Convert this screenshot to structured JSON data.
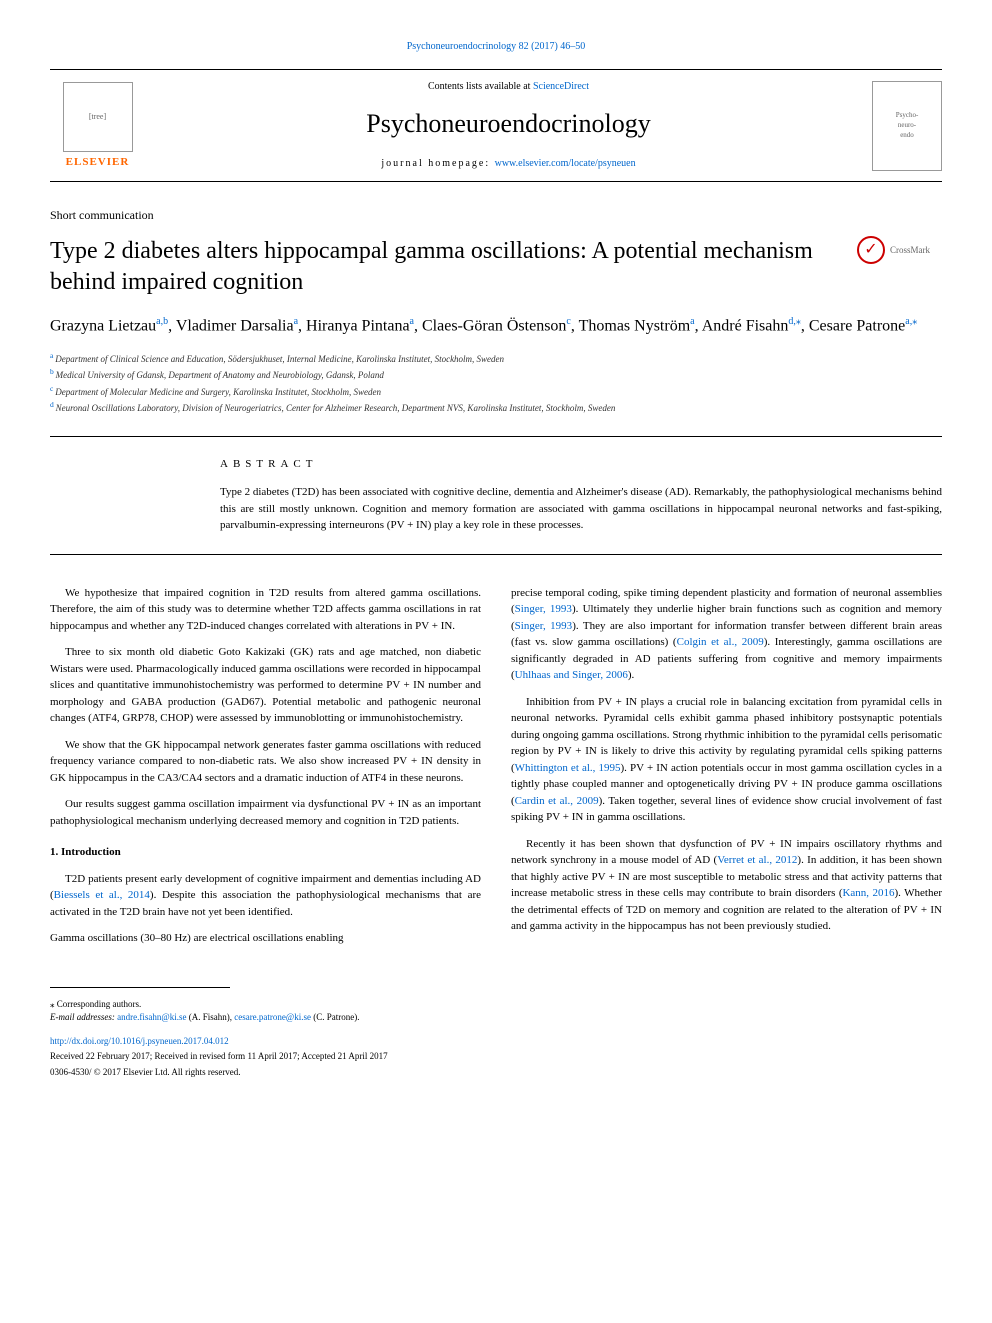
{
  "journal_ref": "Psychoneuroendocrinology 82 (2017) 46–50",
  "header": {
    "contents_prefix": "Contents lists available at ",
    "contents_link": "ScienceDirect",
    "journal_name": "Psychoneuroendocrinology",
    "homepage_prefix": "journal homepage: ",
    "homepage_link": "www.elsevier.com/locate/psyneuen",
    "elsevier": "ELSEVIER"
  },
  "article_type": "Short communication",
  "title": "Type 2 diabetes alters hippocampal gamma oscillations: A potential mechanism behind impaired cognition",
  "crossmark": "CrossMark",
  "authors": [
    {
      "name": "Grazyna Lietzau",
      "aff": "a,b"
    },
    {
      "name": "Vladimer Darsalia",
      "aff": "a"
    },
    {
      "name": "Hiranya Pintana",
      "aff": "a"
    },
    {
      "name": "Claes-Göran Östenson",
      "aff": "c"
    },
    {
      "name": "Thomas Nyström",
      "aff": "a"
    },
    {
      "name": "André Fisahn",
      "aff": "d,",
      "corr": true
    },
    {
      "name": "Cesare Patrone",
      "aff": "a,",
      "corr": true
    }
  ],
  "affiliations": [
    {
      "key": "a",
      "text": "Department of Clinical Science and Education, Södersjukhuset, Internal Medicine, Karolinska Institutet, Stockholm, Sweden"
    },
    {
      "key": "b",
      "text": "Medical University of Gdansk, Department of Anatomy and Neurobiology, Gdansk, Poland"
    },
    {
      "key": "c",
      "text": "Department of Molecular Medicine and Surgery, Karolinska Institutet, Stockholm, Sweden"
    },
    {
      "key": "d",
      "text": "Neuronal Oscillations Laboratory, Division of Neurogeriatrics, Center for Alzheimer Research, Department NVS, Karolinska Institutet, Stockholm, Sweden"
    }
  ],
  "abstract": {
    "heading": "ABSTRACT",
    "text": "Type 2 diabetes (T2D) has been associated with cognitive decline, dementia and Alzheimer's disease (AD). Remarkably, the pathophysiological mechanisms behind this are still mostly unknown. Cognition and memory formation are associated with gamma oscillations in hippocampal neuronal networks and fast-spiking, parvalbumin-expressing interneurons (PV + IN) play a key role in these processes."
  },
  "body": {
    "left": [
      {
        "type": "p",
        "text": "We hypothesize that impaired cognition in T2D results from altered gamma oscillations. Therefore, the aim of this study was to determine whether T2D affects gamma oscillations in rat hippocampus and whether any T2D-induced changes correlated with alterations in PV + IN."
      },
      {
        "type": "p",
        "text": "Three to six month old diabetic Goto Kakizaki (GK) rats and age matched, non diabetic Wistars were used. Pharmacologically induced gamma oscillations were recorded in hippocampal slices and quantitative immunohistochemistry was performed to determine PV + IN number and morphology and GABA production (GAD67). Potential metabolic and pathogenic neuronal changes (ATF4, GRP78, CHOP) were assessed by immunoblotting or immunohistochemistry."
      },
      {
        "type": "p",
        "text": "We show that the GK hippocampal network generates faster gamma oscillations with reduced frequency variance compared to non-diabetic rats. We also show increased PV + IN density in GK hippocampus in the CA3/CA4 sectors and a dramatic induction of ATF4 in these neurons."
      },
      {
        "type": "p",
        "text": "Our results suggest gamma oscillation impairment via dysfunctional PV + IN as an important pathophysiological mechanism underlying decreased memory and cognition in T2D patients."
      },
      {
        "type": "h",
        "text": "1. Introduction"
      },
      {
        "type": "p",
        "cite": "Biessels et al., 2014",
        "pre": "T2D patients present early development of cognitive impairment and dementias including AD (",
        "post": "). Despite this association the pathophysiological mechanisms that are activated in the T2D brain have not yet been identified."
      },
      {
        "type": "p",
        "class": "no-indent",
        "text": "Gamma oscillations (30–80 Hz) are electrical oscillations enabling"
      }
    ],
    "right": [
      {
        "type": "p",
        "class": "no-indent",
        "pre": "precise temporal coding, spike timing dependent plasticity and formation of neuronal assemblies (",
        "cite": "Singer, 1993",
        "mid": "). Ultimately they underlie higher brain functions such as cognition and memory (",
        "cite2": "Singer, 1993",
        "mid2": "). They are also important for information transfer between different brain areas (fast vs. slow gamma oscillations) (",
        "cite3": "Colgin et al., 2009",
        "mid3": "). Interestingly, gamma oscillations are significantly degraded in AD patients suffering from cognitive and memory impairments (",
        "cite4": "Uhlhaas and Singer, 2006",
        "post": ")."
      },
      {
        "type": "p",
        "pre": "Inhibition from PV + IN plays a crucial role in balancing excitation from pyramidal cells in neuronal networks. Pyramidal cells exhibit gamma phased inhibitory postsynaptic potentials during ongoing gamma oscillations. Strong rhythmic inhibition to the pyramidal cells perisomatic region by PV + IN is likely to drive this activity by regulating pyramidal cells spiking patterns (",
        "cite": "Whittington et al., 1995",
        "mid": "). PV + IN action potentials occur in most gamma oscillation cycles in a tightly phase coupled manner and optogenetically driving PV + IN produce gamma oscillations (",
        "cite2": "Cardin et al., 2009",
        "post": "). Taken together, several lines of evidence show crucial involvement of fast spiking PV + IN in gamma oscillations."
      },
      {
        "type": "p",
        "pre": "Recently it has been shown that dysfunction of PV + IN impairs oscillatory rhythms and network synchrony in a mouse model of AD (",
        "cite": "Verret et al., 2012",
        "mid": "). In addition, it has been shown that highly active PV + IN are most susceptible to metabolic stress and that activity patterns that increase metabolic stress in these cells may contribute to brain disorders (",
        "cite2": "Kann, 2016",
        "post": "). Whether the detrimental effects of T2D on memory and cognition are related to the alteration of PV + IN and gamma activity in the hippocampus has not been previously studied."
      }
    ]
  },
  "footer": {
    "corr_label": "⁎ Corresponding authors.",
    "email_label": "E-mail addresses: ",
    "email1": "andre.fisahn@ki.se",
    "email1_name": " (A. Fisahn), ",
    "email2": "cesare.patrone@ki.se",
    "email2_name": " (C. Patrone).",
    "doi": "http://dx.doi.org/10.1016/j.psyneuen.2017.04.012",
    "received": "Received 22 February 2017; Received in revised form 11 April 2017; Accepted 21 April 2017",
    "copyright": "0306-4530/ © 2017 Elsevier Ltd. All rights reserved."
  },
  "colors": {
    "link": "#0066cc",
    "elsevier_orange": "#ff6600",
    "crossmark_red": "#c00"
  }
}
